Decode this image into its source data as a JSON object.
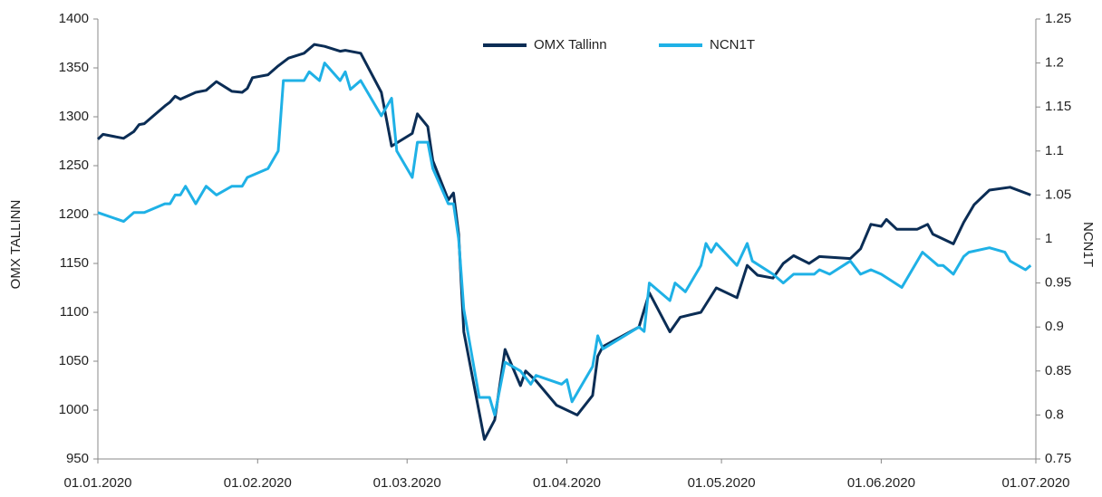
{
  "chart_data": {
    "type": "line",
    "y_label": "OMX TALLINN",
    "y2_label": "NCN1T",
    "xlim": [
      "01.01.2020",
      "01.07.2020"
    ],
    "xticks": [
      "01.01.2020",
      "01.02.2020",
      "01.03.2020",
      "01.04.2020",
      "01.05.2020",
      "01.06.2020",
      "01.07.2020"
    ],
    "ylim": [
      950,
      1400
    ],
    "yticks": [
      950,
      1000,
      1050,
      1100,
      1150,
      1200,
      1250,
      1300,
      1350,
      1400
    ],
    "y2lim": [
      0.75,
      1.25
    ],
    "y2ticks": [
      0.75,
      0.8,
      0.85,
      0.9,
      0.95,
      1,
      1.05,
      1.1,
      1.15,
      1.2,
      1.25
    ],
    "legend": "top",
    "series": [
      {
        "name": "OMX Tallinn",
        "color": "#0b2d55",
        "axis": "y",
        "x": [
          "01.01.2020",
          "02.01.2020",
          "06.01.2020",
          "08.01.2020",
          "09.01.2020",
          "10.01.2020",
          "14.01.2020",
          "15.01.2020",
          "16.01.2020",
          "17.01.2020",
          "20.01.2020",
          "22.01.2020",
          "24.01.2020",
          "27.01.2020",
          "29.01.2020",
          "30.01.2020",
          "31.01.2020",
          "03.02.2020",
          "05.02.2020",
          "07.02.2020",
          "10.02.2020",
          "12.02.2020",
          "14.02.2020",
          "17.02.2020",
          "18.02.2020",
          "21.02.2020",
          "25.02.2020",
          "27.02.2020",
          "02.03.2020",
          "03.03.2020",
          "05.03.2020",
          "06.03.2020",
          "09.03.2020",
          "10.03.2020",
          "11.03.2020",
          "12.03.2020",
          "16.03.2020",
          "18.03.2020",
          "20.03.2020",
          "23.03.2020",
          "24.03.2020",
          "26.03.2020",
          "30.03.2020",
          "01.04.2020",
          "03.04.2020",
          "06.04.2020",
          "07.04.2020",
          "08.04.2020",
          "15.04.2020",
          "17.04.2020",
          "21.04.2020",
          "23.04.2020",
          "27.04.2020",
          "30.04.2020",
          "04.05.2020",
          "06.05.2020",
          "08.05.2020",
          "11.05.2020",
          "13.05.2020",
          "15.05.2020",
          "18.05.2020",
          "20.05.2020",
          "26.05.2020",
          "28.05.2020",
          "30.05.2020",
          "01.06.2020",
          "02.06.2020",
          "04.06.2020",
          "08.06.2020",
          "10.06.2020",
          "11.06.2020",
          "15.06.2020",
          "17.06.2020",
          "19.06.2020",
          "22.06.2020",
          "26.06.2020",
          "30.06.2020"
        ],
        "values": [
          1277,
          1282,
          1278,
          1285,
          1292,
          1293,
          1311,
          1315,
          1321,
          1318,
          1325,
          1327,
          1336,
          1326,
          1325,
          1329,
          1340,
          1343,
          1352,
          1360,
          1365,
          1374,
          1372,
          1367,
          1368,
          1365,
          1325,
          1270,
          1283,
          1303,
          1290,
          1255,
          1215,
          1222,
          1180,
          1080,
          970,
          990,
          1062,
          1025,
          1040,
          1030,
          1005,
          1000,
          995,
          1015,
          1055,
          1065,
          1085,
          1120,
          1080,
          1095,
          1100,
          1125,
          1115,
          1148,
          1138,
          1135,
          1150,
          1158,
          1150,
          1157,
          1155,
          1165,
          1190,
          1188,
          1195,
          1185,
          1185,
          1190,
          1180,
          1170,
          1192,
          1210,
          1225,
          1228,
          1220
        ]
      },
      {
        "name": "NCN1T",
        "color": "#1fb1e6",
        "axis": "y2",
        "x": [
          "01.01.2020",
          "06.01.2020",
          "08.01.2020",
          "10.01.2020",
          "14.01.2020",
          "15.01.2020",
          "16.01.2020",
          "17.01.2020",
          "18.01.2020",
          "20.01.2020",
          "22.01.2020",
          "24.01.2020",
          "27.01.2020",
          "29.01.2020",
          "30.01.2020",
          "03.02.2020",
          "05.02.2020",
          "06.02.2020",
          "10.02.2020",
          "11.02.2020",
          "13.02.2020",
          "14.02.2020",
          "17.02.2020",
          "18.02.2020",
          "19.02.2020",
          "21.02.2020",
          "25.02.2020",
          "27.02.2020",
          "28.02.2020",
          "02.03.2020",
          "03.03.2020",
          "05.03.2020",
          "06.03.2020",
          "09.03.2020",
          "10.03.2020",
          "11.03.2020",
          "12.03.2020",
          "15.03.2020",
          "17.03.2020",
          "18.03.2020",
          "20.03.2020",
          "23.03.2020",
          "25.03.2020",
          "26.03.2020",
          "31.03.2020",
          "01.04.2020",
          "02.04.2020",
          "06.04.2020",
          "07.04.2020",
          "08.04.2020",
          "15.04.2020",
          "16.04.2020",
          "17.04.2020",
          "21.04.2020",
          "22.04.2020",
          "24.04.2020",
          "27.04.2020",
          "28.04.2020",
          "29.04.2020",
          "30.04.2020",
          "04.05.2020",
          "06.05.2020",
          "07.05.2020",
          "11.05.2020",
          "13.05.2020",
          "15.05.2020",
          "19.05.2020",
          "20.05.2020",
          "22.05.2020",
          "26.05.2020",
          "28.05.2020",
          "30.05.2020",
          "01.06.2020",
          "05.06.2020",
          "09.06.2020",
          "12.06.2020",
          "13.06.2020",
          "15.06.2020",
          "17.06.2020",
          "18.06.2020",
          "22.06.2020",
          "25.06.2020",
          "26.06.2020",
          "29.06.2020",
          "30.06.2020"
        ],
        "values": [
          1.03,
          1.02,
          1.03,
          1.03,
          1.04,
          1.04,
          1.05,
          1.05,
          1.06,
          1.04,
          1.06,
          1.05,
          1.06,
          1.06,
          1.07,
          1.08,
          1.1,
          1.18,
          1.18,
          1.19,
          1.18,
          1.2,
          1.18,
          1.19,
          1.17,
          1.18,
          1.14,
          1.16,
          1.1,
          1.07,
          1.11,
          1.11,
          1.08,
          1.04,
          1.04,
          1,
          0.92,
          0.82,
          0.82,
          0.8,
          0.86,
          0.85,
          0.835,
          0.845,
          0.835,
          0.84,
          0.815,
          0.855,
          0.89,
          0.875,
          0.9,
          0.895,
          0.95,
          0.93,
          0.95,
          0.94,
          0.97,
          0.995,
          0.985,
          0.995,
          0.97,
          0.995,
          0.975,
          0.96,
          0.95,
          0.96,
          0.96,
          0.965,
          0.96,
          0.975,
          0.96,
          0.965,
          0.96,
          0.945,
          0.985,
          0.97,
          0.97,
          0.96,
          0.98,
          0.985,
          0.99,
          0.985,
          0.975,
          0.965,
          0.97
        ]
      }
    ]
  }
}
